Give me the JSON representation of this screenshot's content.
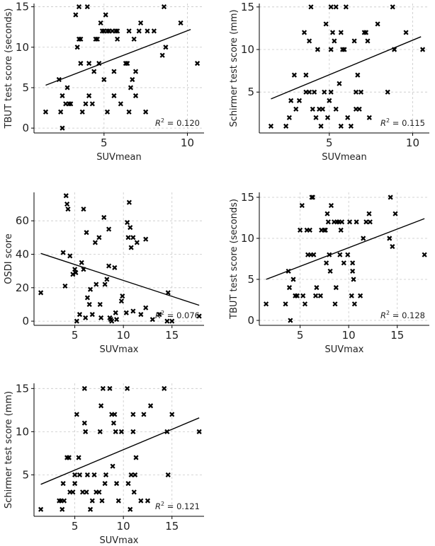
{
  "chart_data": [
    {
      "type": "scatter",
      "xlabel": "SUVmean",
      "ylabel": "TBUT test score (seconds)",
      "xlim": [
        0.8,
        11.0
      ],
      "ylim": [
        -0.6,
        15.4
      ],
      "xticks": [
        5,
        10
      ],
      "yticks": [
        0,
        5,
        10,
        15
      ],
      "annotation": {
        "prefix": "R",
        "sup": "2",
        "text": " = 0.120"
      },
      "fit": {
        "x": [
          1.5,
          10.2
        ],
        "y": [
          5.3,
          12.2
        ]
      },
      "points": [
        [
          1.5,
          2
        ],
        [
          2.3,
          6
        ],
        [
          2.4,
          2
        ],
        [
          2.5,
          4
        ],
        [
          2.5,
          0
        ],
        [
          2.7,
          3
        ],
        [
          2.8,
          5
        ],
        [
          2.9,
          3
        ],
        [
          3.0,
          3
        ],
        [
          3.3,
          14
        ],
        [
          3.4,
          10
        ],
        [
          3.5,
          11
        ],
        [
          3.5,
          15
        ],
        [
          3.6,
          8
        ],
        [
          3.6,
          11
        ],
        [
          3.7,
          2
        ],
        [
          3.9,
          3
        ],
        [
          4.0,
          15
        ],
        [
          4.1,
          4
        ],
        [
          4.1,
          8
        ],
        [
          4.3,
          3
        ],
        [
          4.4,
          7
        ],
        [
          4.5,
          11
        ],
        [
          4.6,
          11
        ],
        [
          4.7,
          8
        ],
        [
          4.8,
          13
        ],
        [
          4.9,
          12
        ],
        [
          5.0,
          6
        ],
        [
          5.0,
          12
        ],
        [
          5.1,
          14
        ],
        [
          5.2,
          12
        ],
        [
          5.2,
          2
        ],
        [
          5.3,
          12
        ],
        [
          5.5,
          12
        ],
        [
          5.6,
          4
        ],
        [
          5.6,
          7
        ],
        [
          5.7,
          12
        ],
        [
          5.8,
          12
        ],
        [
          5.8,
          11
        ],
        [
          6.0,
          3
        ],
        [
          6.3,
          8
        ],
        [
          6.4,
          8
        ],
        [
          6.5,
          12
        ],
        [
          6.5,
          2
        ],
        [
          6.6,
          5
        ],
        [
          6.7,
          6
        ],
        [
          6.8,
          11
        ],
        [
          6.9,
          4
        ],
        [
          6.9,
          7
        ],
        [
          7.1,
          12
        ],
        [
          7.2,
          13
        ],
        [
          7.5,
          2
        ],
        [
          7.6,
          12
        ],
        [
          8.0,
          12
        ],
        [
          8.5,
          9
        ],
        [
          8.6,
          15
        ],
        [
          8.7,
          10
        ],
        [
          9.6,
          13
        ],
        [
          10.6,
          8
        ]
      ]
    },
    {
      "type": "scatter",
      "xlabel": "SUVmean",
      "ylabel": "Schirmer test score (mm)",
      "xlim": [
        0.8,
        11.0
      ],
      "ylim": [
        0.2,
        15.4
      ],
      "xticks": [
        5,
        10
      ],
      "yticks": [
        5,
        10,
        15
      ],
      "annotation": {
        "prefix": "R",
        "sup": "2",
        "text": " = 0.115"
      },
      "fit": {
        "x": [
          1.5,
          10.5
        ],
        "y": [
          4.2,
          11.5
        ]
      },
      "points": [
        [
          1.5,
          1
        ],
        [
          2.4,
          1
        ],
        [
          2.6,
          2
        ],
        [
          2.7,
          4
        ],
        [
          2.9,
          7
        ],
        [
          3.0,
          3
        ],
        [
          3.2,
          4
        ],
        [
          3.5,
          12
        ],
        [
          3.6,
          5
        ],
        [
          3.6,
          7
        ],
        [
          3.8,
          5
        ],
        [
          3.8,
          11
        ],
        [
          3.9,
          15
        ],
        [
          4.0,
          3
        ],
        [
          4.1,
          5
        ],
        [
          4.2,
          2
        ],
        [
          4.3,
          10
        ],
        [
          4.4,
          3
        ],
        [
          4.5,
          1
        ],
        [
          4.6,
          3
        ],
        [
          4.7,
          5
        ],
        [
          4.8,
          13
        ],
        [
          4.9,
          2
        ],
        [
          5.0,
          4
        ],
        [
          5.1,
          5
        ],
        [
          5.1,
          10
        ],
        [
          5.1,
          15
        ],
        [
          5.2,
          12
        ],
        [
          5.3,
          11
        ],
        [
          5.4,
          3
        ],
        [
          5.4,
          15
        ],
        [
          5.6,
          6
        ],
        [
          5.7,
          12
        ],
        [
          5.7,
          1
        ],
        [
          5.8,
          10
        ],
        [
          5.9,
          10
        ],
        [
          6.0,
          15
        ],
        [
          6.1,
          2
        ],
        [
          6.3,
          1
        ],
        [
          6.5,
          11
        ],
        [
          6.6,
          3
        ],
        [
          6.6,
          5
        ],
        [
          6.7,
          7
        ],
        [
          6.8,
          3
        ],
        [
          6.9,
          5
        ],
        [
          7.1,
          12
        ],
        [
          7.2,
          12
        ],
        [
          7.3,
          11
        ],
        [
          7.4,
          2
        ],
        [
          7.9,
          13
        ],
        [
          8.5,
          5
        ],
        [
          8.8,
          15
        ],
        [
          8.9,
          10
        ],
        [
          9.6,
          12
        ],
        [
          10.6,
          10
        ]
      ]
    },
    {
      "type": "scatter",
      "xlabel": "SUVmax",
      "ylabel": "OSDI score",
      "xlim": [
        0.8,
        18.3
      ],
      "ylim": [
        -2.5,
        77
      ],
      "xticks": [
        5,
        10,
        15
      ],
      "yticks": [
        0,
        20,
        40,
        60
      ],
      "annotation": {
        "prefix": "R",
        "sup": "2",
        "text": " = 0.076"
      },
      "fit": {
        "x": [
          1.5,
          17.8
        ],
        "y": [
          40.5,
          9.5
        ]
      },
      "points": [
        [
          1.5,
          17
        ],
        [
          3.8,
          41
        ],
        [
          4.0,
          21
        ],
        [
          4.1,
          75
        ],
        [
          4.2,
          70
        ],
        [
          4.3,
          67
        ],
        [
          4.5,
          39
        ],
        [
          4.8,
          28
        ],
        [
          5.0,
          31
        ],
        [
          5.1,
          29
        ],
        [
          5.2,
          0
        ],
        [
          5.5,
          4
        ],
        [
          5.7,
          35
        ],
        [
          5.9,
          67
        ],
        [
          5.9,
          31
        ],
        [
          6.1,
          2
        ],
        [
          6.2,
          53
        ],
        [
          6.3,
          14
        ],
        [
          6.5,
          10
        ],
        [
          6.6,
          19
        ],
        [
          6.8,
          4
        ],
        [
          7.1,
          47
        ],
        [
          7.2,
          22
        ],
        [
          7.5,
          50
        ],
        [
          7.6,
          10
        ],
        [
          7.7,
          2
        ],
        [
          8.0,
          62
        ],
        [
          8.1,
          22
        ],
        [
          8.3,
          25
        ],
        [
          8.5,
          55
        ],
        [
          8.5,
          33
        ],
        [
          8.6,
          2
        ],
        [
          8.7,
          1
        ],
        [
          8.8,
          0
        ],
        [
          9.1,
          32
        ],
        [
          9.2,
          5
        ],
        [
          9.3,
          1
        ],
        [
          9.8,
          12
        ],
        [
          9.9,
          15
        ],
        [
          10.3,
          5
        ],
        [
          10.4,
          59
        ],
        [
          10.5,
          50
        ],
        [
          10.6,
          71
        ],
        [
          10.7,
          56
        ],
        [
          10.8,
          44
        ],
        [
          11.0,
          6
        ],
        [
          11.0,
          50
        ],
        [
          11.4,
          47
        ],
        [
          11.8,
          4
        ],
        [
          12.3,
          49
        ],
        [
          12.3,
          8
        ],
        [
          13.0,
          1
        ],
        [
          13.7,
          4
        ],
        [
          14.5,
          0
        ],
        [
          14.6,
          17
        ],
        [
          15.0,
          0
        ],
        [
          17.8,
          3
        ]
      ]
    },
    {
      "type": "scatter",
      "xlabel": "SUVmax",
      "ylabel": "TBUT test score (seconds)",
      "xlim": [
        0.8,
        18.3
      ],
      "ylim": [
        -0.6,
        15.6
      ],
      "xticks": [
        5,
        10,
        15
      ],
      "yticks": [
        0,
        5,
        10,
        15
      ],
      "annotation": {
        "prefix": "R",
        "sup": "2",
        "text": " = 0.128"
      },
      "fit": {
        "x": [
          1.5,
          17.8
        ],
        "y": [
          5.0,
          12.4
        ]
      },
      "points": [
        [
          1.5,
          2
        ],
        [
          3.5,
          2
        ],
        [
          3.8,
          6
        ],
        [
          3.9,
          4
        ],
        [
          4.0,
          0
        ],
        [
          4.3,
          5
        ],
        [
          4.5,
          3
        ],
        [
          4.7,
          3
        ],
        [
          5.0,
          11
        ],
        [
          5.2,
          14
        ],
        [
          5.3,
          3
        ],
        [
          5.5,
          2
        ],
        [
          5.7,
          11
        ],
        [
          5.8,
          8
        ],
        [
          6.0,
          11
        ],
        [
          6.1,
          8
        ],
        [
          6.2,
          15
        ],
        [
          6.3,
          15
        ],
        [
          6.4,
          8
        ],
        [
          6.6,
          3
        ],
        [
          6.7,
          4
        ],
        [
          7.1,
          3
        ],
        [
          7.2,
          11
        ],
        [
          7.5,
          11
        ],
        [
          7.6,
          11
        ],
        [
          7.7,
          7
        ],
        [
          7.8,
          13
        ],
        [
          7.9,
          12
        ],
        [
          8.0,
          8
        ],
        [
          8.1,
          6
        ],
        [
          8.2,
          14
        ],
        [
          8.5,
          12
        ],
        [
          8.6,
          2
        ],
        [
          8.7,
          4
        ],
        [
          8.8,
          12
        ],
        [
          9.0,
          12
        ],
        [
          9.1,
          8
        ],
        [
          9.2,
          11
        ],
        [
          9.3,
          12
        ],
        [
          9.5,
          7
        ],
        [
          9.9,
          8
        ],
        [
          10.1,
          12
        ],
        [
          10.3,
          3
        ],
        [
          10.4,
          7
        ],
        [
          10.4,
          6
        ],
        [
          10.5,
          5
        ],
        [
          10.6,
          2
        ],
        [
          10.8,
          12
        ],
        [
          11.2,
          3
        ],
        [
          11.5,
          10
        ],
        [
          11.8,
          12
        ],
        [
          12.1,
          13
        ],
        [
          12.2,
          12
        ],
        [
          14.2,
          10
        ],
        [
          14.3,
          15
        ],
        [
          14.5,
          9
        ],
        [
          14.8,
          13
        ],
        [
          17.8,
          8
        ]
      ]
    },
    {
      "type": "scatter",
      "xlabel": "SUVmax",
      "ylabel": "Schirmer test score (mm)",
      "xlim": [
        0.8,
        18.3
      ],
      "ylim": [
        0.2,
        15.6
      ],
      "xticks": [
        5,
        10,
        15
      ],
      "yticks": [
        5,
        10,
        15
      ],
      "annotation": {
        "prefix": "R",
        "sup": "2",
        "text": " = 0.121"
      },
      "fit": {
        "x": [
          1.5,
          17.8
        ],
        "y": [
          3.9,
          11.6
        ]
      },
      "points": [
        [
          1.5,
          1
        ],
        [
          3.4,
          2
        ],
        [
          3.6,
          2
        ],
        [
          3.7,
          1
        ],
        [
          3.8,
          4
        ],
        [
          3.9,
          2
        ],
        [
          4.2,
          7
        ],
        [
          4.4,
          7
        ],
        [
          4.5,
          3
        ],
        [
          4.8,
          3
        ],
        [
          5.0,
          5
        ],
        [
          5.0,
          4
        ],
        [
          5.2,
          12
        ],
        [
          5.4,
          7
        ],
        [
          5.5,
          5
        ],
        [
          5.8,
          3
        ],
        [
          6.0,
          15
        ],
        [
          6.0,
          11
        ],
        [
          6.1,
          10
        ],
        [
          6.2,
          3
        ],
        [
          6.3,
          5
        ],
        [
          6.6,
          1
        ],
        [
          6.8,
          2
        ],
        [
          7.0,
          5
        ],
        [
          7.2,
          3
        ],
        [
          7.5,
          3
        ],
        [
          7.6,
          10
        ],
        [
          7.7,
          13
        ],
        [
          7.8,
          2
        ],
        [
          7.9,
          15
        ],
        [
          8.1,
          4
        ],
        [
          8.2,
          5
        ],
        [
          8.6,
          15
        ],
        [
          8.8,
          12
        ],
        [
          8.9,
          6
        ],
        [
          9.0,
          11
        ],
        [
          9.1,
          12
        ],
        [
          9.2,
          10
        ],
        [
          9.3,
          4
        ],
        [
          9.5,
          2
        ],
        [
          9.8,
          10
        ],
        [
          10.4,
          15
        ],
        [
          10.5,
          4
        ],
        [
          10.7,
          1
        ],
        [
          10.8,
          5
        ],
        [
          11.0,
          10
        ],
        [
          11.0,
          12
        ],
        [
          11.1,
          3
        ],
        [
          11.2,
          5
        ],
        [
          11.3,
          7
        ],
        [
          11.8,
          2
        ],
        [
          12.1,
          12
        ],
        [
          12.5,
          2
        ],
        [
          12.8,
          13
        ],
        [
          14.2,
          15
        ],
        [
          14.5,
          10
        ],
        [
          14.6,
          5
        ],
        [
          15.0,
          12
        ],
        [
          17.8,
          10
        ]
      ]
    }
  ]
}
